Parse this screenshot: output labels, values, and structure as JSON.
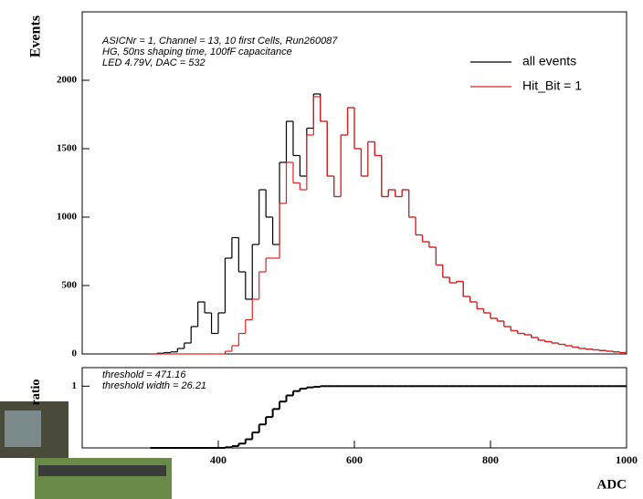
{
  "chart_data": [
    {
      "type": "histogram",
      "ylabel": "Events",
      "annotations": [
        "ASICNr = 1, Channel = 13, 10 first Cells, Run260087",
        "HG, 50ns shaping time, 100fF capacitance",
        "LED 4.79V, DAC =      532"
      ],
      "legend": "top right",
      "bins": [
        300,
        310,
        320,
        330,
        340,
        350,
        360,
        370,
        380,
        390,
        400,
        410,
        420,
        430,
        440,
        450,
        460,
        470,
        480,
        490,
        500,
        510,
        520,
        530,
        540,
        550,
        560,
        570,
        580,
        590,
        600,
        610,
        620,
        630,
        640,
        650,
        660,
        670,
        680,
        690,
        700,
        710,
        720,
        730,
        740,
        750,
        760,
        770,
        780,
        790,
        800,
        810,
        820,
        830,
        840,
        850,
        860,
        870,
        880,
        890,
        900,
        910,
        920,
        930,
        940,
        950,
        960,
        970,
        980,
        990,
        1000
      ],
      "series": [
        {
          "name": "all events",
          "color": "#000000",
          "values": [
            0,
            5,
            10,
            15,
            40,
            80,
            200,
            380,
            300,
            150,
            300,
            700,
            850,
            600,
            400,
            800,
            1200,
            1000,
            800,
            1400,
            1700,
            1450,
            1300,
            1650,
            1900,
            1700,
            1300,
            1150,
            1600,
            1800,
            1500,
            1300,
            1550,
            1450,
            1150,
            1200,
            1150,
            1200,
            1000,
            870,
            820,
            780,
            650,
            560,
            520,
            530,
            420,
            380,
            330,
            300,
            260,
            240,
            200,
            170,
            150,
            140,
            120,
            100,
            90,
            80,
            70,
            60,
            50,
            40,
            35,
            30,
            25,
            20,
            15,
            10
          ]
        },
        {
          "name": "Hit_Bit = 1",
          "color": "#e02020",
          "values": [
            0,
            0,
            0,
            0,
            0,
            0,
            0,
            0,
            0,
            0,
            0,
            20,
            60,
            150,
            250,
            400,
            600,
            700,
            700,
            1100,
            1400,
            1250,
            1200,
            1600,
            1880,
            1700,
            1300,
            1150,
            1600,
            1800,
            1500,
            1300,
            1550,
            1450,
            1150,
            1200,
            1150,
            1200,
            1000,
            870,
            820,
            780,
            650,
            560,
            520,
            530,
            420,
            380,
            330,
            300,
            260,
            240,
            200,
            170,
            150,
            140,
            120,
            100,
            90,
            80,
            70,
            60,
            50,
            40,
            35,
            30,
            25,
            20,
            15,
            10
          ]
        }
      ],
      "xlim": [
        200,
        1000
      ],
      "ylim": [
        0,
        2500
      ],
      "yticks": [
        0,
        500,
        1000,
        1500,
        2000
      ]
    },
    {
      "type": "histogram",
      "ylabel": "ratio",
      "xlabel": "ADC",
      "annotations": [
        "threshold = 471.16",
        "threshold width = 26.21"
      ],
      "bins": [
        300,
        310,
        320,
        330,
        340,
        350,
        360,
        370,
        380,
        390,
        400,
        410,
        420,
        430,
        440,
        450,
        460,
        470,
        480,
        490,
        500,
        510,
        520,
        530,
        540,
        550,
        560,
        570,
        580,
        590,
        600,
        610,
        620,
        630,
        640,
        650,
        660,
        670,
        680,
        690,
        700,
        710,
        720,
        730,
        740,
        750,
        760,
        770,
        780,
        790,
        800,
        810,
        820,
        830,
        840,
        850,
        860,
        870,
        880,
        890,
        900,
        910,
        920,
        930,
        940,
        950,
        960,
        970,
        980,
        990,
        1000
      ],
      "series": [
        {
          "color": "#000000",
          "values": [
            0,
            0,
            0,
            0,
            0,
            0,
            0,
            0,
            0,
            0,
            0,
            0.01,
            0.03,
            0.07,
            0.14,
            0.25,
            0.38,
            0.5,
            0.63,
            0.75,
            0.85,
            0.92,
            0.96,
            0.98,
            0.99,
            1,
            1,
            1,
            1,
            1,
            1,
            1,
            1,
            1,
            1,
            1,
            1,
            1,
            1,
            1,
            1,
            1,
            1,
            1,
            1,
            1,
            1,
            1,
            1,
            1,
            1,
            1,
            1,
            1,
            1,
            1,
            1,
            1,
            1,
            1,
            1,
            1,
            1,
            1,
            1,
            1,
            1,
            1,
            1,
            1
          ]
        }
      ],
      "xlim": [
        200,
        1000
      ],
      "ylim": [
        0,
        1.3
      ],
      "yticks": [
        1
      ],
      "xticks": [
        400,
        600,
        800,
        1000
      ]
    }
  ]
}
